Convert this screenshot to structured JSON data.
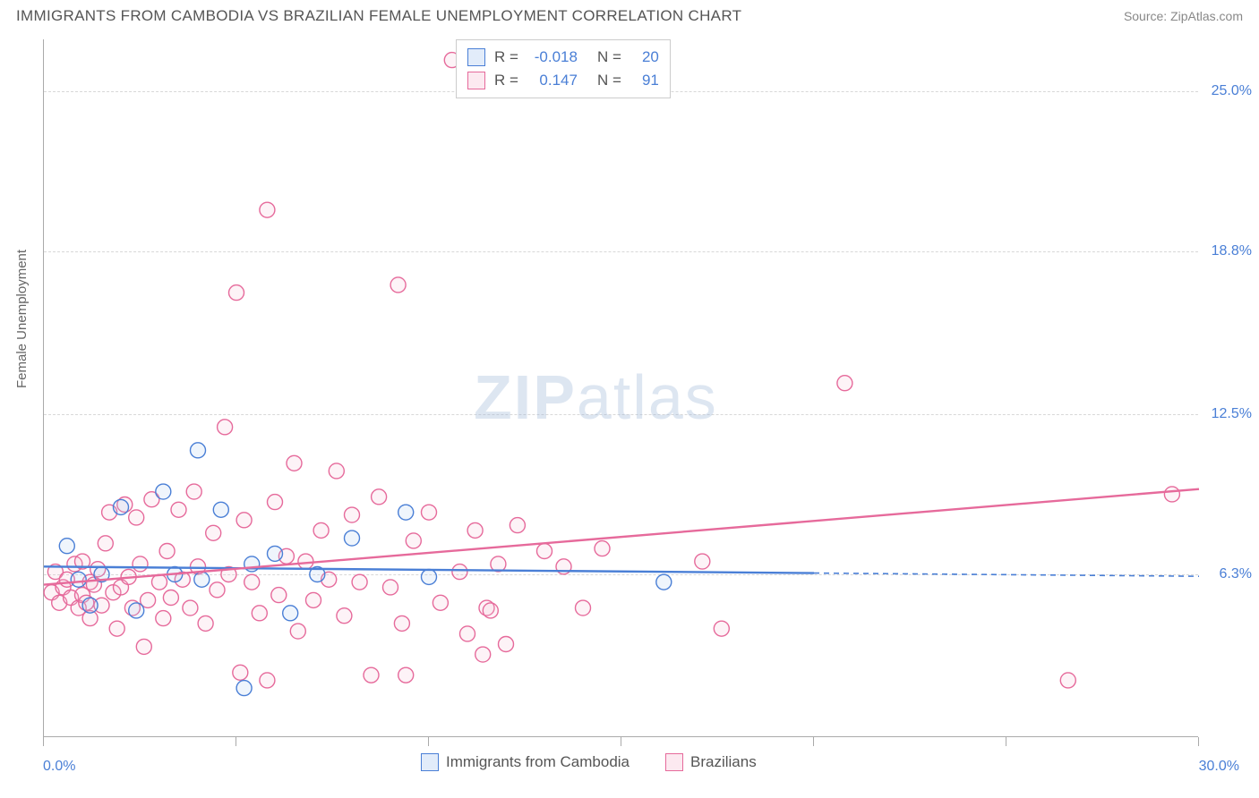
{
  "header": {
    "title": "IMMIGRANTS FROM CAMBODIA VS BRAZILIAN FEMALE UNEMPLOYMENT CORRELATION CHART",
    "source": "Source: ZipAtlas.com"
  },
  "watermark": {
    "text_bold": "ZIP",
    "text_light": "atlas"
  },
  "chart": {
    "type": "scatter",
    "ylabel": "Female Unemployment",
    "xlim": [
      0,
      30
    ],
    "ylim": [
      0,
      27
    ],
    "xtick_positions": [
      0,
      5,
      10,
      15,
      20,
      25,
      30
    ],
    "xlabel_min": "0.0%",
    "xlabel_max": "30.0%",
    "ygrid": [
      {
        "value": 6.3,
        "label": "6.3%"
      },
      {
        "value": 12.5,
        "label": "12.5%"
      },
      {
        "value": 18.8,
        "label": "18.8%"
      },
      {
        "value": 25.0,
        "label": "25.0%"
      }
    ],
    "background_color": "#ffffff",
    "grid_color": "#d8d8d8",
    "axis_color": "#aaaaaa",
    "marker_radius": 8.5,
    "marker_stroke_width": 1.4,
    "marker_fill_opacity": 0.18,
    "series": [
      {
        "name": "Immigrants from Cambodia",
        "color_stroke": "#4a7fd6",
        "color_fill": "#a7c5ef",
        "R": "-0.018",
        "N": "20",
        "regression": {
          "x0": 0,
          "y0": 6.6,
          "x1": 20,
          "y1": 6.35,
          "extend_to_x": 30
        },
        "points": [
          [
            0.6,
            7.4
          ],
          [
            0.9,
            6.1
          ],
          [
            1.2,
            5.1
          ],
          [
            1.5,
            6.3
          ],
          [
            2.0,
            8.9
          ],
          [
            2.4,
            4.9
          ],
          [
            3.1,
            9.5
          ],
          [
            3.4,
            6.3
          ],
          [
            4.0,
            11.1
          ],
          [
            4.1,
            6.1
          ],
          [
            4.6,
            8.8
          ],
          [
            5.2,
            1.9
          ],
          [
            5.4,
            6.7
          ],
          [
            6.0,
            7.1
          ],
          [
            6.4,
            4.8
          ],
          [
            7.1,
            6.3
          ],
          [
            8.0,
            7.7
          ],
          [
            9.4,
            8.7
          ],
          [
            10.0,
            6.2
          ],
          [
            16.1,
            6.0
          ]
        ]
      },
      {
        "name": "Brazilians",
        "color_stroke": "#e66a9b",
        "color_fill": "#f6bcd2",
        "R": "0.147",
        "N": "91",
        "regression": {
          "x0": 0,
          "y0": 5.9,
          "x1": 30,
          "y1": 9.6
        },
        "points": [
          [
            0.2,
            5.6
          ],
          [
            0.3,
            6.4
          ],
          [
            0.4,
            5.2
          ],
          [
            0.5,
            5.8
          ],
          [
            0.6,
            6.1
          ],
          [
            0.7,
            5.4
          ],
          [
            0.8,
            6.7
          ],
          [
            0.9,
            5.0
          ],
          [
            1.0,
            5.5
          ],
          [
            1.0,
            6.8
          ],
          [
            1.1,
            5.2
          ],
          [
            1.2,
            6.0
          ],
          [
            1.2,
            4.6
          ],
          [
            1.3,
            5.9
          ],
          [
            1.4,
            6.5
          ],
          [
            1.5,
            5.1
          ],
          [
            1.6,
            7.5
          ],
          [
            1.7,
            8.7
          ],
          [
            1.8,
            5.6
          ],
          [
            1.9,
            4.2
          ],
          [
            2.0,
            5.8
          ],
          [
            2.1,
            9.0
          ],
          [
            2.2,
            6.2
          ],
          [
            2.3,
            5.0
          ],
          [
            2.4,
            8.5
          ],
          [
            2.5,
            6.7
          ],
          [
            2.6,
            3.5
          ],
          [
            2.7,
            5.3
          ],
          [
            2.8,
            9.2
          ],
          [
            3.0,
            6.0
          ],
          [
            3.1,
            4.6
          ],
          [
            3.2,
            7.2
          ],
          [
            3.3,
            5.4
          ],
          [
            3.5,
            8.8
          ],
          [
            3.6,
            6.1
          ],
          [
            3.8,
            5.0
          ],
          [
            3.9,
            9.5
          ],
          [
            4.0,
            6.6
          ],
          [
            4.2,
            4.4
          ],
          [
            4.4,
            7.9
          ],
          [
            4.5,
            5.7
          ],
          [
            4.7,
            12.0
          ],
          [
            4.8,
            6.3
          ],
          [
            5.0,
            17.2
          ],
          [
            5.1,
            2.5
          ],
          [
            5.2,
            8.4
          ],
          [
            5.4,
            6.0
          ],
          [
            5.6,
            4.8
          ],
          [
            5.8,
            20.4
          ],
          [
            5.8,
            2.2
          ],
          [
            6.0,
            9.1
          ],
          [
            6.1,
            5.5
          ],
          [
            6.3,
            7.0
          ],
          [
            6.5,
            10.6
          ],
          [
            6.6,
            4.1
          ],
          [
            6.8,
            6.8
          ],
          [
            7.0,
            5.3
          ],
          [
            7.2,
            8.0
          ],
          [
            7.4,
            6.1
          ],
          [
            7.6,
            10.3
          ],
          [
            7.8,
            4.7
          ],
          [
            8.0,
            8.6
          ],
          [
            8.2,
            6.0
          ],
          [
            8.5,
            2.4
          ],
          [
            8.7,
            9.3
          ],
          [
            9.0,
            5.8
          ],
          [
            9.2,
            17.5
          ],
          [
            9.3,
            4.4
          ],
          [
            9.4,
            2.4
          ],
          [
            9.6,
            7.6
          ],
          [
            10.0,
            8.7
          ],
          [
            10.3,
            5.2
          ],
          [
            10.6,
            26.2
          ],
          [
            10.8,
            6.4
          ],
          [
            11.0,
            4.0
          ],
          [
            11.2,
            8.0
          ],
          [
            11.4,
            3.2
          ],
          [
            11.5,
            5.0
          ],
          [
            11.6,
            4.9
          ],
          [
            11.8,
            6.7
          ],
          [
            12.0,
            3.6
          ],
          [
            12.3,
            8.2
          ],
          [
            13.0,
            7.2
          ],
          [
            13.5,
            6.6
          ],
          [
            14.0,
            5.0
          ],
          [
            14.5,
            7.3
          ],
          [
            17.1,
            6.8
          ],
          [
            17.6,
            4.2
          ],
          [
            20.8,
            13.7
          ],
          [
            26.6,
            2.2
          ],
          [
            29.3,
            9.4
          ]
        ]
      }
    ],
    "series_legend": {
      "items": [
        {
          "label": "Immigrants from Cambodia",
          "stroke": "#4a7fd6",
          "fill": "#a7c5ef"
        },
        {
          "label": "Brazilians",
          "stroke": "#e66a9b",
          "fill": "#f6bcd2"
        }
      ]
    },
    "stat_legend": {
      "rows": [
        {
          "stroke": "#4a7fd6",
          "fill": "#a7c5ef",
          "R_label": "R =",
          "R": "-0.018",
          "N_label": "N =",
          "N": "20"
        },
        {
          "stroke": "#e66a9b",
          "fill": "#f6bcd2",
          "R_label": "R =",
          "R": "0.147",
          "N_label": "N =",
          "N": "91"
        }
      ]
    }
  }
}
